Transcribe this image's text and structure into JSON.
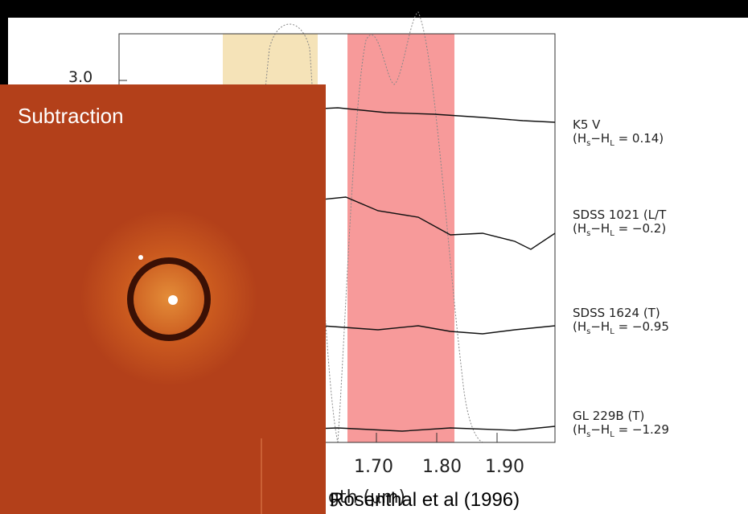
{
  "plot": {
    "y_tick": "3.0",
    "x_ticks": [
      "1.70",
      "1.80",
      "1.90"
    ],
    "x_label": "gth (μm)"
  },
  "spectra": [
    {
      "name": "K5 V",
      "index_parts": [
        "(H",
        "s",
        "−H",
        "L",
        " = 0.14)"
      ]
    },
    {
      "name": "SDSS 1021 (L/T",
      "index_parts": [
        "(H",
        "s",
        "−H",
        "L",
        " = −0.2)"
      ]
    },
    {
      "name": "SDSS 1624 (T)",
      "index_parts": [
        "(H",
        "s",
        "−H",
        "L",
        " = −0.95"
      ]
    },
    {
      "name": "GL 229B (T)",
      "index_parts": [
        "(H",
        "s",
        "−H",
        "L",
        " = −1.29"
      ]
    }
  ],
  "inset": {
    "title": "Subtraction"
  },
  "citation": "Rosenthal et al (1996)"
}
